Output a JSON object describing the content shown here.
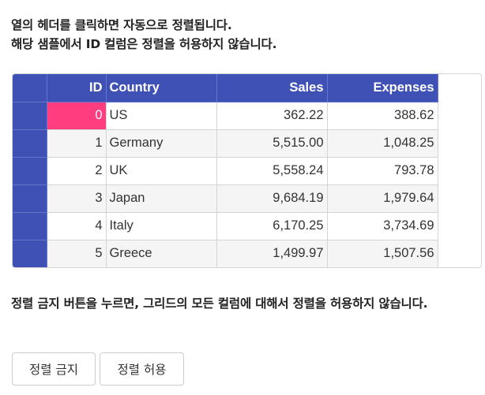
{
  "intro": {
    "line1": "열의 헤더를 클릭하면 자동으로 정렬됩니다.",
    "line2": "해당 샘플에서 ID 컬럼은 정렬을 허용하지 않습니다."
  },
  "grid": {
    "columns": [
      "ID",
      "Country",
      "Sales",
      "Expenses"
    ],
    "rows": [
      {
        "id": "0",
        "country": "US",
        "sales": "362.22",
        "expenses": "388.62"
      },
      {
        "id": "1",
        "country": "Germany",
        "sales": "5,515.00",
        "expenses": "1,048.25"
      },
      {
        "id": "2",
        "country": "UK",
        "sales": "5,558.24",
        "expenses": "793.78"
      },
      {
        "id": "3",
        "country": "Japan",
        "sales": "9,684.19",
        "expenses": "1,979.64"
      },
      {
        "id": "4",
        "country": "Italy",
        "sales": "6,170.25",
        "expenses": "3,734.69"
      },
      {
        "id": "5",
        "country": "Greece",
        "sales": "1,499.97",
        "expenses": "1,507.56"
      }
    ],
    "header_color": "#3f51b5",
    "selected_cell_color": "#ff3d7f"
  },
  "note": {
    "text": "정렬 금지 버튼을 누르면, 그리드의 모든 컬럼에 대해서 정렬을 허용하지 않습니다."
  },
  "buttons": {
    "disable_sort": "정렬 금지",
    "allow_sort": "정렬 허용"
  }
}
